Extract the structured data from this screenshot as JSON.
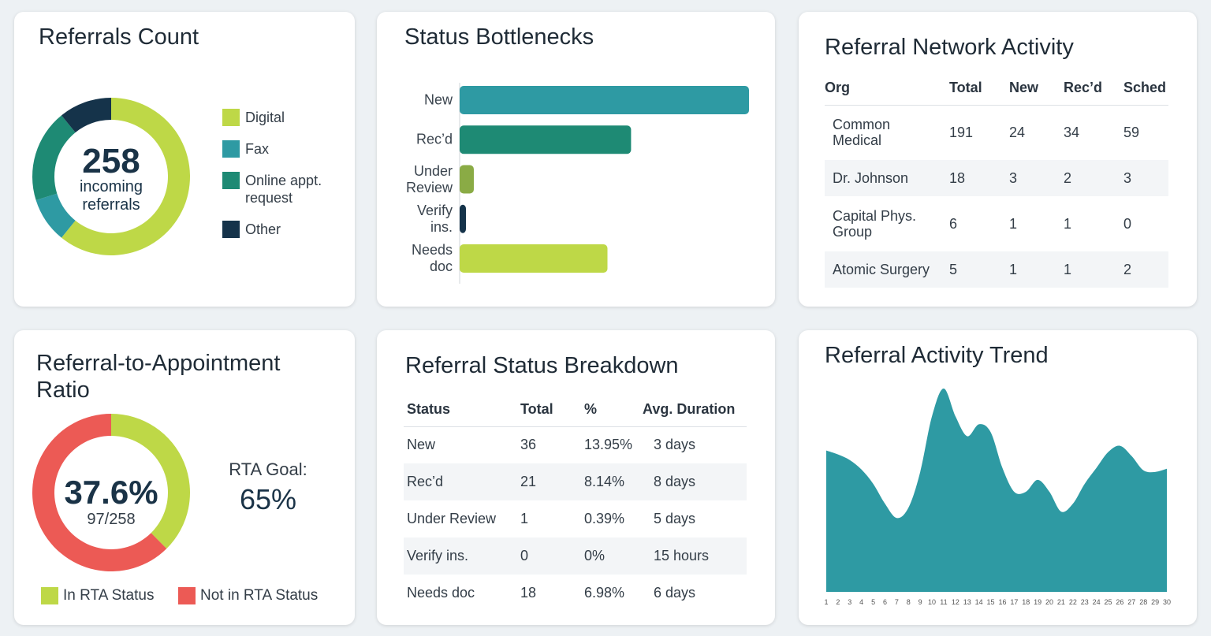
{
  "chart_data": [
    {
      "type": "donut",
      "title": "Referrals Count",
      "center_value": 258,
      "center_label": "incoming referrals",
      "categories": [
        "Digital",
        "Fax",
        "Online appt. request",
        "Other"
      ],
      "values": [
        157,
        24,
        49,
        28
      ],
      "colors": [
        "#bed847",
        "#2e9aa3",
        "#1e8a74",
        "#15334a"
      ]
    },
    {
      "type": "bar",
      "orientation": "horizontal",
      "title": "Status Bottlenecks",
      "categories": [
        "New",
        "Rec’d",
        "Under Review",
        "Verify ins.",
        "Needs doc"
      ],
      "values": [
        36,
        21,
        1,
        0,
        18
      ],
      "colors": [
        "#2e9aa3",
        "#1e8a74",
        "#8aab45",
        "#15334a",
        "#bed847"
      ]
    },
    {
      "type": "donut",
      "title": "Referral-to-Appointment Ratio",
      "center_value": "37.6%",
      "center_label": "97/258",
      "goal_label": "RTA Goal:",
      "goal_value": "65%",
      "categories": [
        "In RTA Status",
        "Not in RTA Status"
      ],
      "values": [
        97,
        161
      ],
      "colors": [
        "#bed847",
        "#ec5a55"
      ]
    },
    {
      "type": "area",
      "title": "Referral Activity Trend",
      "color": "#2e9aa3",
      "x": [
        1,
        2,
        3,
        4,
        5,
        6,
        7,
        8,
        9,
        10,
        11,
        12,
        13,
        14,
        15,
        16,
        17,
        18,
        19,
        20,
        21,
        22,
        23,
        24,
        25,
        26,
        27,
        28,
        29,
        30
      ],
      "values": [
        17.8,
        17.3,
        16.6,
        15.4,
        13.6,
        11.1,
        9.3,
        10.6,
        15.1,
        22.1,
        25.6,
        22.1,
        19.6,
        21.1,
        20.1,
        15.6,
        12.6,
        12.6,
        14.1,
        12.6,
        10.1,
        11.1,
        13.6,
        15.6,
        17.6,
        18.4,
        17.1,
        15.3,
        15.1,
        15.5
      ]
    }
  ],
  "tables": [
    {
      "title": "Referral Network Activity",
      "columns": [
        "Org",
        "Total",
        "New",
        "Rec’d",
        "Sched"
      ],
      "rows": [
        [
          "Common Medical",
          191,
          24,
          34,
          59
        ],
        [
          "Dr. Johnson",
          18,
          3,
          2,
          3
        ],
        [
          "Capital Phys. Group",
          6,
          1,
          1,
          0
        ],
        [
          "Atomic Surgery",
          5,
          1,
          1,
          2
        ]
      ]
    },
    {
      "title": "Referral Status Breakdown",
      "columns": [
        "Status",
        "Total",
        "%",
        "Avg. Duration"
      ],
      "rows": [
        [
          "New",
          36,
          "13.95%",
          "3 days"
        ],
        [
          "Rec’d",
          21,
          "8.14%",
          "8 days"
        ],
        [
          "Under Review",
          1,
          "0.39%",
          "5 days"
        ],
        [
          "Verify ins.",
          0,
          "0%",
          "15 hours"
        ],
        [
          "Needs doc",
          18,
          "6.98%",
          "6 days"
        ]
      ]
    }
  ]
}
